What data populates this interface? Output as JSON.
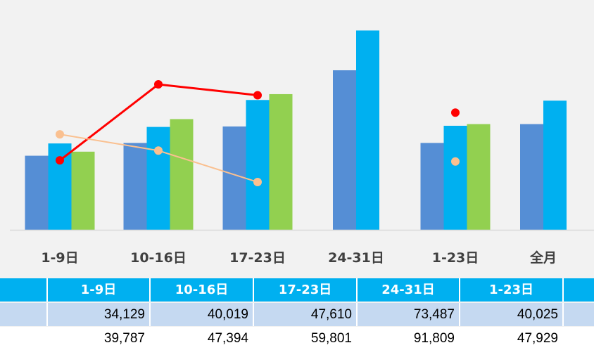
{
  "chart_data": {
    "type": "bar",
    "categories": [
      "1-9日",
      "10-16日",
      "17-23日",
      "24-31日",
      "1-23日",
      "全月"
    ],
    "ylim": [
      0,
      90000
    ],
    "series": [
      {
        "type": "bar",
        "color": "#558ed5",
        "values": [
          34129,
          40019,
          47610,
          73487,
          40025,
          48700
        ]
      },
      {
        "type": "bar",
        "color": "#00b0f0",
        "values": [
          39787,
          47394,
          59801,
          91809,
          47929,
          59500
        ]
      },
      {
        "type": "bar",
        "color": "#92d050",
        "values": [
          36000,
          51000,
          62500,
          null,
          48700,
          null
        ]
      },
      {
        "type": "line",
        "color": "#ff0000",
        "values": [
          32000,
          67000,
          62000,
          null,
          54000,
          null
        ]
      },
      {
        "type": "line",
        "color": "#fac090",
        "values": [
          44000,
          36500,
          22000,
          null,
          31500,
          null
        ]
      }
    ],
    "grid": false,
    "legend": "none"
  },
  "table": {
    "headers": [
      "1-9日",
      "10-16日",
      "17-23日",
      "24-31日",
      "1-23日",
      ""
    ],
    "rows": [
      [
        "34,129",
        "40,019",
        "47,610",
        "73,487",
        "40,025",
        ""
      ],
      [
        "39,787",
        "47,394",
        "59,801",
        "91,809",
        "47,929",
        ""
      ]
    ]
  }
}
